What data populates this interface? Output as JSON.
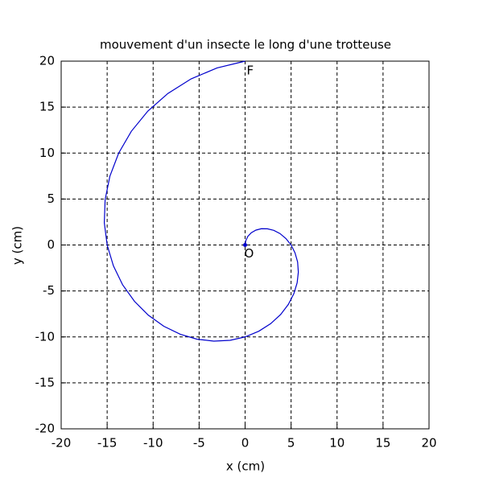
{
  "chart_data": {
    "type": "line",
    "title": "mouvement d'un insecte le long d'une trotteuse",
    "x_label": "x (cm)",
    "y_label": "y (cm)",
    "series": [
      {
        "color": "#0000cc",
        "x": [
          0,
          0.08,
          0.31,
          0.68,
          1.18,
          1.77,
          2.43,
          3.12,
          3.8,
          4.44,
          5,
          5.43,
          5.71,
          5.79,
          5.66,
          5.3,
          4.7,
          3.86,
          2.78,
          1.49,
          0,
          -1.64,
          -3.4,
          -5.22,
          -7.05,
          -8.84,
          -10.52,
          -12.03,
          -13.32,
          -14.32,
          -15,
          -15.31,
          -15.22,
          -14.7,
          -13.75,
          -12.37,
          -10.58,
          -8.4,
          -5.87,
          -3.05,
          0
        ],
        "values": [
          0,
          0.49,
          0.95,
          1.34,
          1.62,
          1.77,
          1.76,
          1.59,
          1.24,
          0.7,
          0,
          -0.86,
          -1.85,
          -2.95,
          -4.11,
          -5.3,
          -6.47,
          -7.57,
          -8.56,
          -9.38,
          -10,
          -10.37,
          -10.46,
          -10.25,
          -9.71,
          -8.84,
          -7.64,
          -6.13,
          -4.33,
          -2.27,
          0,
          2.42,
          4.94,
          7.49,
          9.99,
          12.37,
          14.56,
          16.48,
          18.07,
          19.26,
          20
        ]
      }
    ],
    "start_label": "O",
    "end_label": "F",
    "xlim": [
      -20,
      20
    ],
    "ylim": [
      -20,
      20
    ],
    "xticks": [
      -20,
      -15,
      -10,
      -5,
      0,
      5,
      10,
      15,
      20
    ],
    "yticks": [
      -20,
      -15,
      -10,
      -5,
      0,
      5,
      10,
      15,
      20
    ],
    "grid": true
  }
}
